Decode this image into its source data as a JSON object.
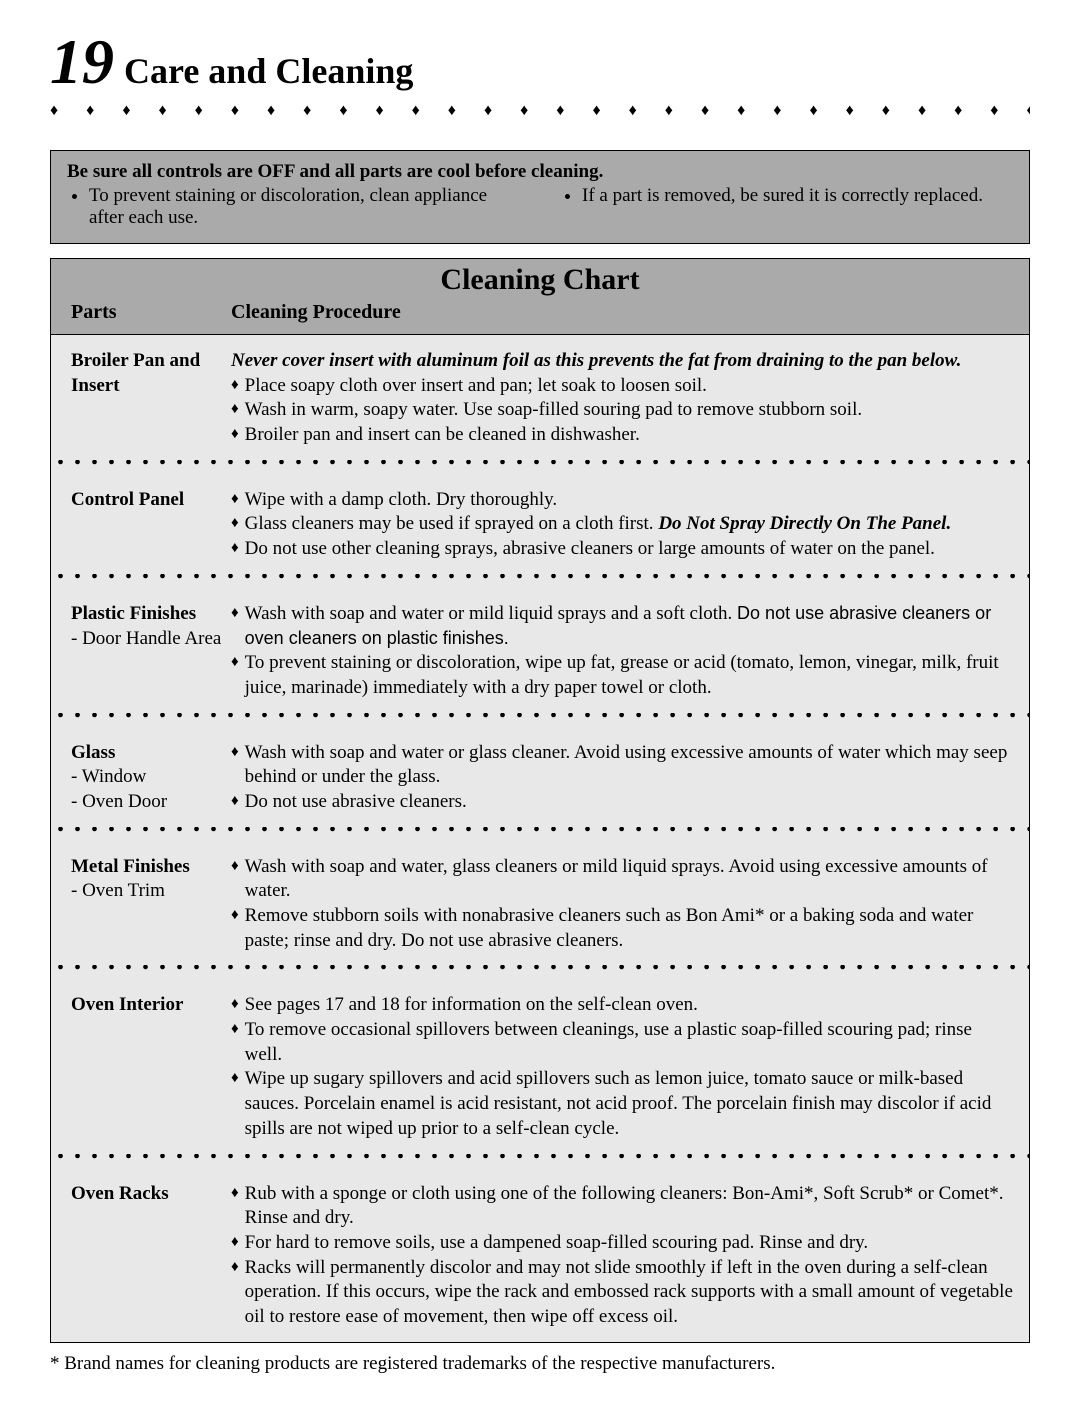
{
  "page_number": "19",
  "page_title": "Care and Cleaning",
  "notice": {
    "heading": "Be sure all controls are OFF and all parts are cool before cleaning.",
    "left": "To prevent staining or discoloration, clean appliance after each use.",
    "right": "If a part is removed, be sured it is correctly replaced."
  },
  "chart": {
    "title": "Cleaning Chart",
    "col_parts": "Parts",
    "col_proc": "Cleaning Procedure",
    "rows": [
      {
        "part_title": "Broiler Pan and Insert",
        "part_sub": "",
        "intro_italic": "Never cover insert with aluminum foil as this prevents the fat from draining to the pan below.",
        "items": [
          {
            "text": "Place soapy cloth over insert and pan; let soak to loosen soil."
          },
          {
            "text": "Wash in warm, soapy water. Use soap-filled souring pad to remove stubborn soil."
          },
          {
            "text": "Broiler pan and insert can be cleaned in dishwasher."
          }
        ]
      },
      {
        "part_title": "Control Panel",
        "part_sub": "",
        "items": [
          {
            "text": "Wipe with a damp cloth. Dry thoroughly."
          },
          {
            "text_pre": "Glass cleaners may be used if sprayed on a cloth first. ",
            "text_bold_italic": "Do Not Spray Directly On The Panel."
          },
          {
            "text": "Do not use other cleaning sprays, abrasive cleaners or large amounts of water on the panel."
          }
        ]
      },
      {
        "part_title": "Plastic Finishes",
        "part_sub": "- Door Handle Area",
        "items": [
          {
            "text_pre": "Wash with soap and water or mild liquid sprays and a soft cloth. ",
            "text_sans": "Do not use abrasive cleaners or oven cleaners on plastic finishes."
          },
          {
            "text": "To prevent staining or discoloration, wipe up fat, grease or acid (tomato, lemon, vinegar, milk, fruit juice, marinade) immediately with a dry paper towel or cloth."
          }
        ]
      },
      {
        "part_title": "Glass",
        "part_sub": "- Window\n- Oven Door",
        "items": [
          {
            "text": "Wash with soap and water or glass cleaner. Avoid using excessive amounts of water which  may seep behind or under the glass."
          },
          {
            "text": "Do not use abrasive cleaners."
          }
        ]
      },
      {
        "part_title": "Metal Finishes",
        "part_sub": "- Oven Trim",
        "items": [
          {
            "text": "Wash with soap and water, glass cleaners or mild liquid sprays. Avoid using excessive amounts of water."
          },
          {
            "text": "Remove stubborn soils with nonabrasive cleaners such as Bon Ami* or a baking soda and water paste; rinse and dry. Do not use abrasive cleaners."
          }
        ]
      },
      {
        "part_title": "Oven Interior",
        "part_sub": "",
        "items": [
          {
            "text": "See pages 17 and 18 for information on the self-clean oven."
          },
          {
            "text": "To remove occasional spillovers between cleanings, use a plastic soap-filled scouring pad; rinse well."
          },
          {
            "text": "Wipe up sugary spillovers and acid spillovers such as lemon juice, tomato sauce or milk-based sauces.  Porcelain enamel is acid resistant, not acid proof. The porcelain finish may discolor if acid spills are not wiped up prior to a self-clean cycle."
          }
        ]
      },
      {
        "part_title": "Oven Racks",
        "part_sub": "",
        "items": [
          {
            "text": "Rub with a sponge or cloth using one of the following cleaners: Bon-Ami*, Soft Scrub* or Comet*. Rinse and dry."
          },
          {
            "text": "For hard to remove soils, use a dampened soap-filled scouring pad. Rinse and dry."
          },
          {
            "text": "Racks will permanently discolor and may not slide smoothly if left in the oven during a self-clean operation. If this occurs, wipe the rack and embossed rack supports with a small amount of vegetable oil to restore ease of movement, then wipe off excess oil."
          }
        ]
      }
    ]
  },
  "footnote": "* Brand names for cleaning products are registered trademarks of the respective manufacturers.",
  "styling": {
    "notice_bg": "#aaaaaa",
    "chart_head_bg": "#aaaaaa",
    "chart_body_bg": "#e8e8e8",
    "diamond_glyph": "♦",
    "dot_glyph": "•"
  }
}
